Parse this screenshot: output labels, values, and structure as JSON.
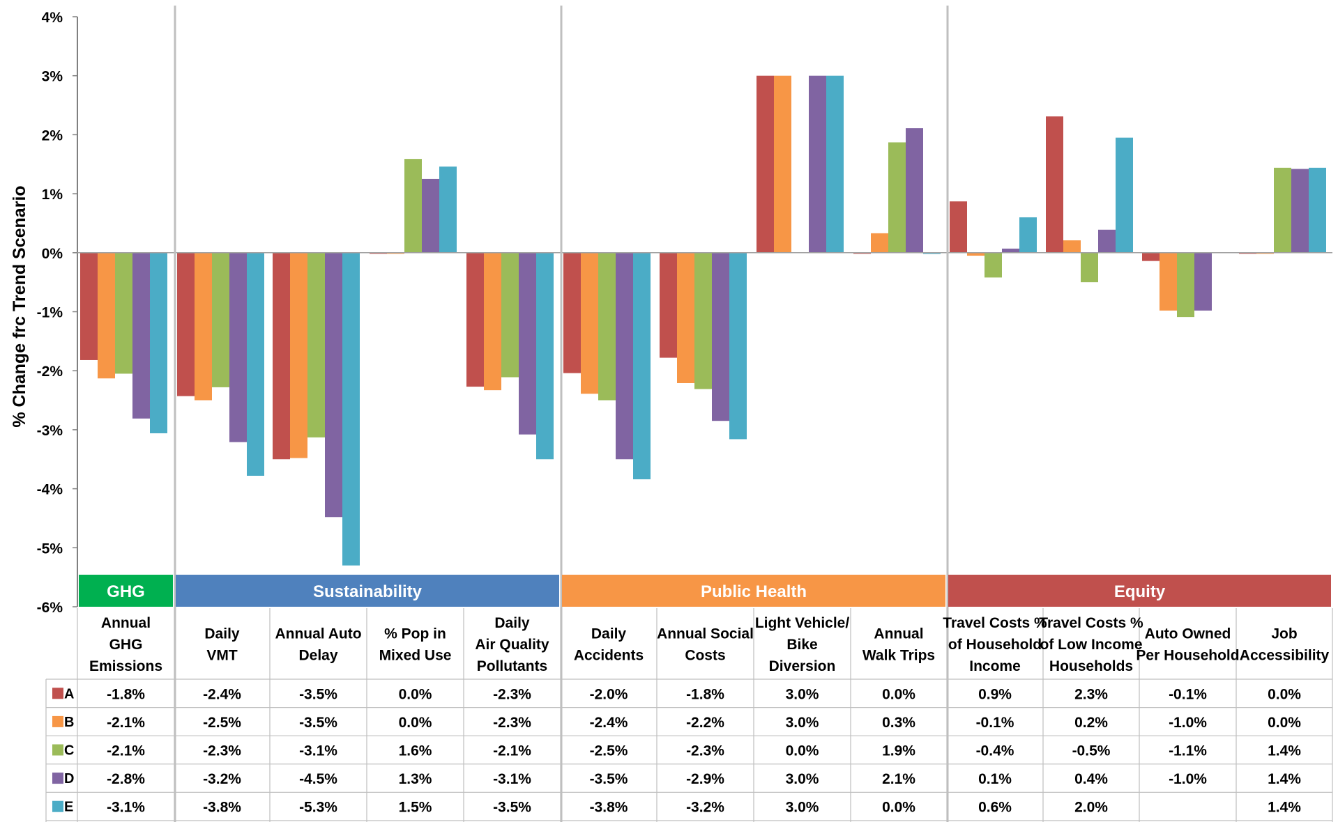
{
  "chart_data": {
    "type": "bar",
    "ylabel": "% Change frc Trend Scenario",
    "ylim": [
      -6,
      4
    ],
    "y_ticks": [
      "4%",
      "3%",
      "2%",
      "1%",
      "0%",
      "-1%",
      "-2%",
      "-3%",
      "-4%",
      "-5%",
      "-6%"
    ],
    "legend_placement": "table-left",
    "grid": false,
    "groups": [
      {
        "name": "GHG",
        "color": "#00b050",
        "start": 0,
        "span": 1
      },
      {
        "name": "Sustainability",
        "color": "#4f81bd",
        "start": 1,
        "span": 4
      },
      {
        "name": "Public Health",
        "color": "#f79646",
        "start": 5,
        "span": 4
      },
      {
        "name": "Equity",
        "color": "#c0504d",
        "start": 9,
        "span": 4
      }
    ],
    "categories": [
      [
        "Annual",
        "GHG",
        "Emissions"
      ],
      [
        "Daily",
        "VMT"
      ],
      [
        "Annual Auto",
        "Delay"
      ],
      [
        "% Pop in",
        "Mixed Use"
      ],
      [
        "Daily",
        "Air Quality",
        "Pollutants"
      ],
      [
        "Daily",
        "Accidents"
      ],
      [
        "Annual Social",
        "Costs"
      ],
      [
        "Light Vehicle/",
        "Bike",
        "Diversion"
      ],
      [
        "Annual",
        "Walk Trips"
      ],
      [
        "Travel Costs %",
        "of Household",
        "Income"
      ],
      [
        "Travel Costs %",
        "of Low Income",
        "Households"
      ],
      [
        "Auto Owned",
        "Per Household"
      ],
      [
        "Job",
        "Accessibility"
      ]
    ],
    "series": [
      {
        "name": "A",
        "color": "#c0504d",
        "values": [
          -1.82,
          -2.43,
          -3.5,
          0.0,
          -2.27,
          -2.04,
          -1.78,
          3.0,
          0.0,
          0.87,
          2.31,
          -0.14,
          -0.01
        ],
        "labels": [
          "-1.8%",
          "-2.4%",
          "-3.5%",
          "0.0%",
          "-2.3%",
          "-2.0%",
          "-1.8%",
          "3.0%",
          "0.0%",
          "0.9%",
          "2.3%",
          "-0.1%",
          "0.0%"
        ]
      },
      {
        "name": "B",
        "color": "#f79646",
        "values": [
          -2.13,
          -2.5,
          -3.48,
          0.0,
          -2.33,
          -2.39,
          -2.21,
          3.0,
          0.33,
          -0.05,
          0.21,
          -0.98,
          -0.01
        ],
        "labels": [
          "-2.1%",
          "-2.5%",
          "-3.5%",
          "0.0%",
          "-2.3%",
          "-2.4%",
          "-2.2%",
          "3.0%",
          "0.3%",
          "-0.1%",
          "0.2%",
          "-1.0%",
          "0.0%"
        ]
      },
      {
        "name": "C",
        "color": "#9bbb59",
        "values": [
          -2.05,
          -2.28,
          -3.13,
          1.59,
          -2.11,
          -2.5,
          -2.31,
          null,
          1.87,
          -0.42,
          -0.5,
          -1.09,
          1.44
        ],
        "labels": [
          "-2.1%",
          "-2.3%",
          "-3.1%",
          "1.6%",
          "-2.1%",
          "-2.5%",
          "-2.3%",
          "0.0%",
          "1.9%",
          "-0.4%",
          "-0.5%",
          "-1.1%",
          "1.4%"
        ]
      },
      {
        "name": "D",
        "color": "#8064a2",
        "values": [
          -2.81,
          -3.21,
          -4.48,
          1.25,
          -3.08,
          -3.5,
          -2.85,
          3.0,
          2.11,
          0.07,
          0.39,
          -0.98,
          1.42
        ],
        "labels": [
          "-2.8%",
          "-3.2%",
          "-4.5%",
          "1.3%",
          "-3.1%",
          "-3.5%",
          "-2.9%",
          "3.0%",
          "2.1%",
          "0.1%",
          "0.4%",
          "-1.0%",
          "1.4%"
        ]
      },
      {
        "name": "E",
        "color": "#4bacc6",
        "values": [
          -3.06,
          -3.78,
          -5.3,
          1.46,
          -3.5,
          -3.84,
          -3.16,
          3.0,
          -0.02,
          0.6,
          1.95,
          null,
          1.44
        ],
        "labels": [
          "-3.1%",
          "-3.8%",
          "-5.3%",
          "1.5%",
          "-3.5%",
          "-3.8%",
          "-3.2%",
          "3.0%",
          "0.0%",
          "0.6%",
          "2.0%",
          "",
          "1.4%"
        ]
      }
    ]
  }
}
